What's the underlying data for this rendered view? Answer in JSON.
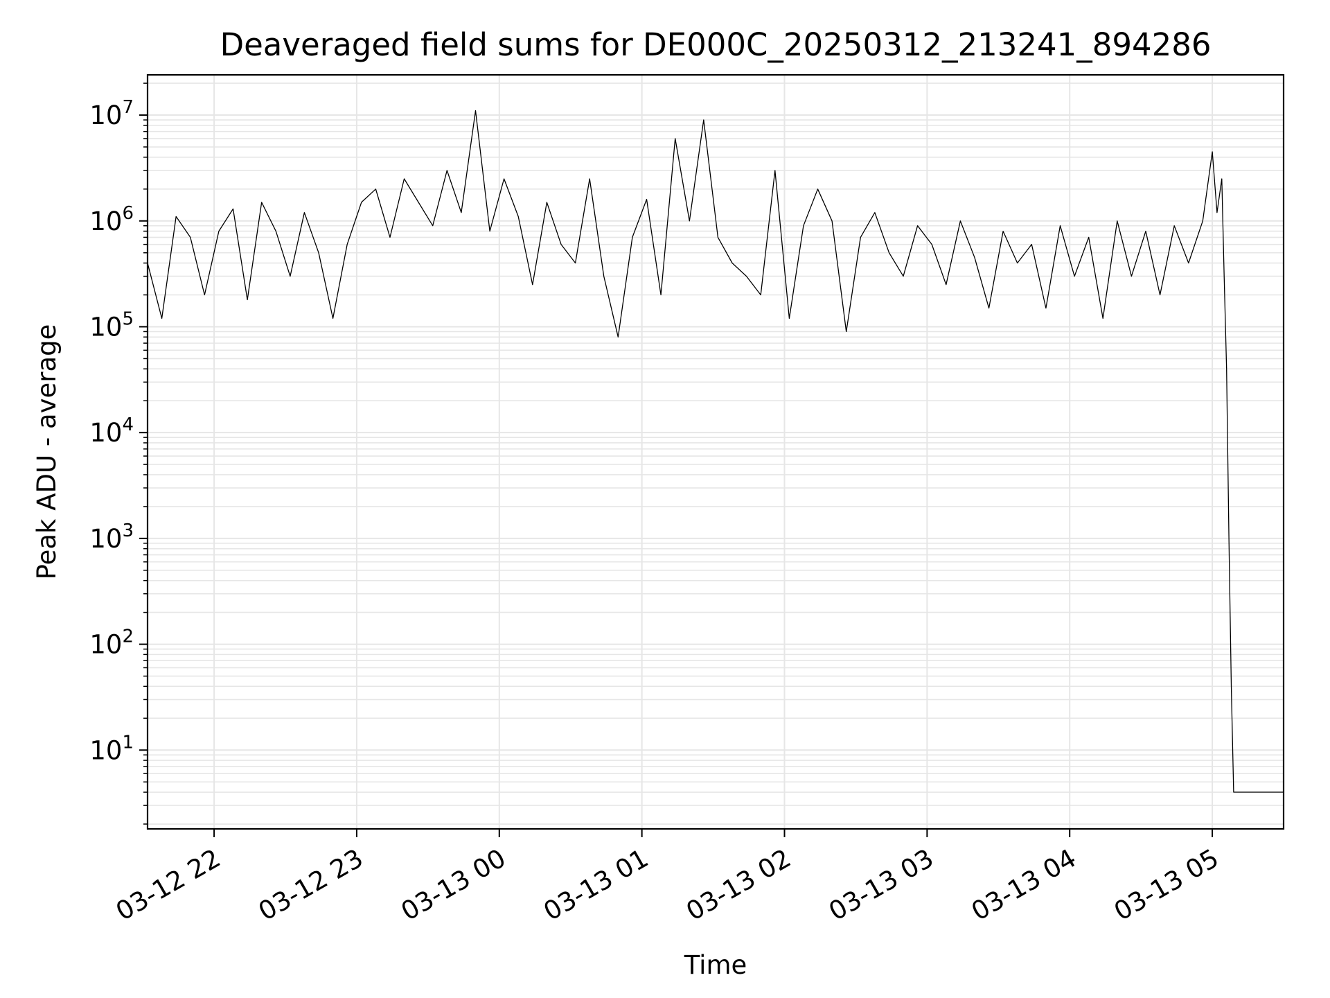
{
  "chart_data": {
    "type": "line",
    "title": "Deaveraged field sums for DE000C_20250312_213241_894286",
    "xlabel": "Time",
    "ylabel": "Peak ADU - average",
    "yscale": "log",
    "xlim": [
      "03-12 21:32",
      "03-13 05:30"
    ],
    "ylim": [
      1.8,
      24000000
    ],
    "x_ticks": [
      "03-12 22",
      "03-12 23",
      "03-13 00",
      "03-13 01",
      "03-13 02",
      "03-13 03",
      "03-13 04",
      "03-13 05"
    ],
    "y_ticks": [
      {
        "base": "10",
        "exp": "1"
      },
      {
        "base": "10",
        "exp": "2"
      },
      {
        "base": "10",
        "exp": "3"
      },
      {
        "base": "10",
        "exp": "4"
      },
      {
        "base": "10",
        "exp": "5"
      },
      {
        "base": "10",
        "exp": "6"
      },
      {
        "base": "10",
        "exp": "7"
      }
    ],
    "grid": true,
    "line_color": "#000000",
    "grid_color": "#e6e6e6",
    "series": [
      {
        "x": [
          "03-12 21:32",
          "03-12 21:38",
          "03-12 21:44",
          "03-12 21:50",
          "03-12 21:56",
          "03-12 22:02",
          "03-12 22:08",
          "03-12 22:14",
          "03-12 22:20",
          "03-12 22:26",
          "03-12 22:32",
          "03-12 22:38",
          "03-12 22:44",
          "03-12 22:50",
          "03-12 22:56",
          "03-12 23:02",
          "03-12 23:08",
          "03-12 23:14",
          "03-12 23:20",
          "03-12 23:26",
          "03-12 23:32",
          "03-12 23:38",
          "03-12 23:44",
          "03-12 23:50",
          "03-12 23:56",
          "03-13 00:02",
          "03-13 00:08",
          "03-13 00:14",
          "03-13 00:20",
          "03-13 00:26",
          "03-13 00:32",
          "03-13 00:38",
          "03-13 00:44",
          "03-13 00:50",
          "03-13 00:56",
          "03-13 01:02",
          "03-13 01:08",
          "03-13 01:14",
          "03-13 01:20",
          "03-13 01:26",
          "03-13 01:32",
          "03-13 01:38",
          "03-13 01:44",
          "03-13 01:50",
          "03-13 01:56",
          "03-13 02:02",
          "03-13 02:08",
          "03-13 02:14",
          "03-13 02:20",
          "03-13 02:26",
          "03-13 02:32",
          "03-13 02:38",
          "03-13 02:44",
          "03-13 02:50",
          "03-13 02:56",
          "03-13 03:02",
          "03-13 03:08",
          "03-13 03:14",
          "03-13 03:20",
          "03-13 03:26",
          "03-13 03:32",
          "03-13 03:38",
          "03-13 03:44",
          "03-13 03:50",
          "03-13 03:56",
          "03-13 04:02",
          "03-13 04:08",
          "03-13 04:14",
          "03-13 04:20",
          "03-13 04:26",
          "03-13 04:32",
          "03-13 04:38",
          "03-13 04:44",
          "03-13 04:50",
          "03-13 04:56",
          "03-13 05:00",
          "03-13 05:02",
          "03-13 05:04",
          "03-13 05:05",
          "03-13 05:06",
          "03-13 05:07",
          "03-13 05:08",
          "03-13 05:09",
          "03-13 05:12",
          "03-13 05:18",
          "03-13 05:24",
          "03-13 05:30"
        ],
        "y": [
          400000,
          120000,
          1100000,
          700000,
          200000,
          800000,
          1300000,
          180000,
          1500000,
          800000,
          300000,
          1200000,
          500000,
          120000,
          600000,
          1500000,
          2000000,
          700000,
          2500000,
          1500000,
          900000,
          3000000,
          1200000,
          11000000,
          800000,
          2500000,
          1100000,
          250000,
          1500000,
          600000,
          400000,
          2500000,
          300000,
          80000,
          700000,
          1600000,
          200000,
          6000000,
          1000000,
          9000000,
          700000,
          400000,
          300000,
          200000,
          3000000,
          120000,
          900000,
          2000000,
          1000000,
          90000,
          700000,
          1200000,
          500000,
          300000,
          900000,
          600000,
          250000,
          1000000,
          450000,
          150000,
          800000,
          400000,
          600000,
          150000,
          900000,
          300000,
          700000,
          120000,
          1000000,
          300000,
          800000,
          200000,
          900000,
          400000,
          1000000,
          4500000,
          1200000,
          2500000,
          300000,
          40000,
          1000,
          40,
          4,
          4,
          4,
          4,
          4
        ],
        "style": "thin black line, dense noisy series"
      }
    ]
  }
}
